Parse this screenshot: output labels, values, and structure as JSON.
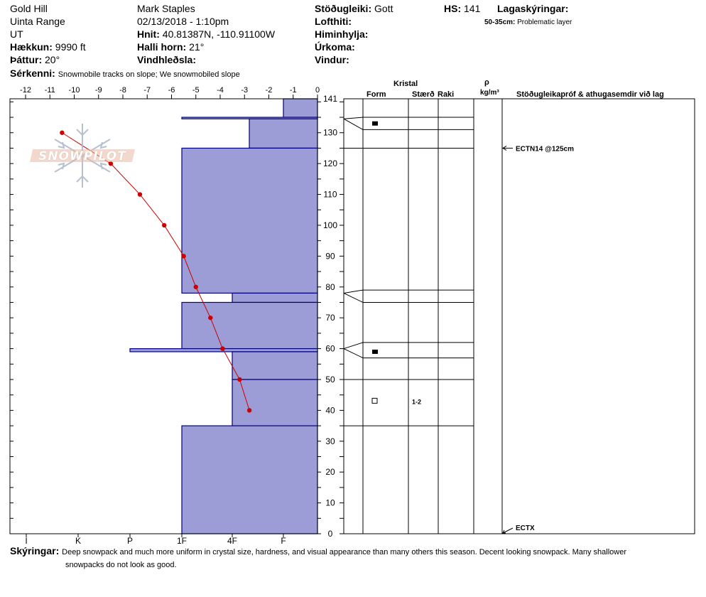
{
  "header": {
    "location": "Gold Hill",
    "range": "Uinta Range",
    "state": "UT",
    "elevation_label": "Hækkun:",
    "elevation_value": "9990 ft",
    "aspect_label": "Þáttur:",
    "aspect_value": "20°",
    "features_label": "Sérkenni:",
    "features_value": "Snowmobile tracks on slope; We snowmobiled slope",
    "observer": "Mark Staples",
    "datetime": "02/13/2018 - 1:10pm",
    "coords_label": "Hnit:",
    "coords_value": "40.81387N, -110.91100W",
    "slope_label": "Halli horn:",
    "slope_value": "21°",
    "wind_loading_label": "Vindhleðsla:",
    "stability_label": "Stöðugleiki:",
    "stability_value": "Gott",
    "air_temp_label": "Lofthiti:",
    "sky_label": "Himinhylja:",
    "precip_label": "Úrkoma:",
    "wind_label": "Vindur:",
    "hs_label": "HS:",
    "hs_value": "141",
    "layer_notes_label": "Lagaskýringar:",
    "layer_note_range": "50-35cm:",
    "layer_note_text": "Problematic layer"
  },
  "logo_text": "SNOWPILOT",
  "columns": {
    "crystal": "Kristal",
    "form": "Form",
    "size": "Stærð",
    "moisture": "Raki",
    "rho": "ρ",
    "density_unit": "kg/m³",
    "stability_tests": "Stöðugleikapróf & athugasemdir við lag"
  },
  "comments": {
    "label": "Skýringar:",
    "line1": "Deep snowpack and much more uniform in crystal size, hardness, and visual appearance than many others this season. Decent looking snowpack. Many shallower",
    "line2": "snowpacks do not look as good."
  },
  "colors": {
    "hardness_fill": "#9c9cd6",
    "hardness_stroke": "#00007a",
    "temp_line": "#cc0000"
  },
  "chart_data": {
    "type": "snow-profile",
    "snow_height_cm": 141,
    "y_ticks": [
      0,
      10,
      20,
      30,
      40,
      50,
      60,
      70,
      80,
      90,
      100,
      110,
      120,
      130,
      141
    ],
    "temp_ticks": [
      "-12",
      "-11",
      "-10",
      "-9",
      "-8",
      "-7",
      "-6",
      "-5",
      "-4",
      "-3",
      "-2",
      "-1",
      "0"
    ],
    "hardness_ticks": [
      "I",
      "K",
      "P",
      "1F",
      "4F",
      "F"
    ],
    "temperature_profile": [
      {
        "depth": 130,
        "temp": -10.5
      },
      {
        "depth": 120,
        "temp": -8.5
      },
      {
        "depth": 110,
        "temp": -7.3
      },
      {
        "depth": 100,
        "temp": -6.3
      },
      {
        "depth": 90,
        "temp": -5.5
      },
      {
        "depth": 80,
        "temp": -5.0
      },
      {
        "depth": 70,
        "temp": -4.4
      },
      {
        "depth": 60,
        "temp": -3.9
      },
      {
        "depth": 50,
        "temp": -3.2
      },
      {
        "depth": 40,
        "temp": -2.8
      }
    ],
    "hardness_layers": [
      {
        "top": 141,
        "bottom": 135,
        "hardness": "F+"
      },
      {
        "top": 135,
        "bottom": 134.5,
        "hardness": "1F"
      },
      {
        "top": 134.5,
        "bottom": 125,
        "hardness": "4F-"
      },
      {
        "top": 125,
        "bottom": 78,
        "hardness": "1F"
      },
      {
        "top": 78,
        "bottom": 75,
        "hardness": "4F+"
      },
      {
        "top": 75,
        "bottom": 60,
        "hardness": "1F"
      },
      {
        "top": 60,
        "bottom": 59,
        "hardness": "P-"
      },
      {
        "top": 59,
        "bottom": 50,
        "hardness": "4F+"
      },
      {
        "top": 50,
        "bottom": 35,
        "hardness": "4F+"
      },
      {
        "top": 35,
        "bottom": 0,
        "hardness": "1F"
      }
    ],
    "grid_layer_boundaries": [
      141,
      135,
      131,
      125,
      79,
      75,
      62,
      57,
      50,
      35
    ],
    "crystal_marks": [
      {
        "depth": 133,
        "symbol": "filled-square",
        "size": ""
      },
      {
        "depth": 59,
        "symbol": "filled-square",
        "size": ""
      },
      {
        "depth": 43,
        "symbol": "open-square",
        "size": "1-2"
      }
    ],
    "stability_tests": [
      {
        "depth": 125,
        "text": "ECTN14 @125cm"
      },
      {
        "depth": 0,
        "text": "ECTX"
      }
    ]
  }
}
